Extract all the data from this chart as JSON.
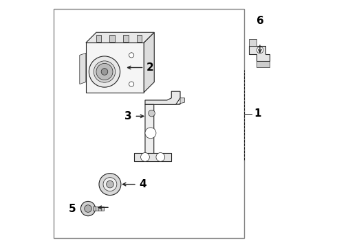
{
  "background_color": "#ffffff",
  "border_color": "#aaaaaa",
  "line_color": "#222222",
  "text_color": "#000000",
  "fig_width": 4.9,
  "fig_height": 3.6,
  "dpi": 100
}
